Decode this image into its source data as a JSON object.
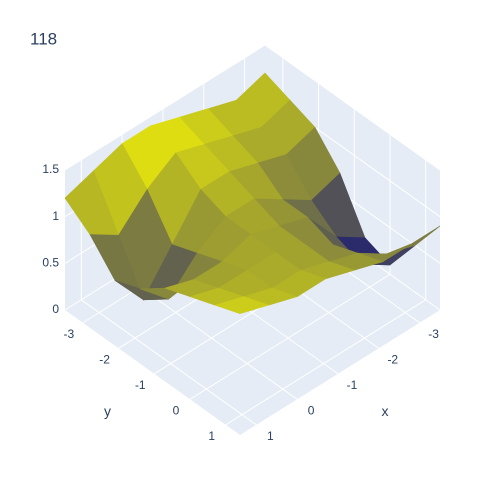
{
  "chart_data": {
    "type": "surface",
    "title": "118",
    "x": [
      -3.5,
      -2.8,
      -2.1,
      -1.4,
      -0.7,
      0,
      0.7,
      1.4
    ],
    "y": [
      -3.5,
      -2.8,
      -2.1,
      -1.4,
      -0.7,
      0,
      0.7,
      1.4
    ],
    "z": [
      [
        1.2,
        1.1,
        1.2,
        1.3,
        1.4,
        1.4,
        1.3,
        1.2
      ],
      [
        1.1,
        1.0,
        1.1,
        1.2,
        1.3,
        1.1,
        0.8,
        1.0
      ],
      [
        1.0,
        0.9,
        1.0,
        1.1,
        1.1,
        0.7,
        0.3,
        0.7
      ],
      [
        0.7,
        0.6,
        0.8,
        1.0,
        1.0,
        0.8,
        0.5,
        0.8
      ],
      [
        0.2,
        0.4,
        0.8,
        0.9,
        1.0,
        0.9,
        0.9,
        1.0
      ],
      [
        0.1,
        0.3,
        0.7,
        0.9,
        1.0,
        1.0,
        1.0,
        1.1
      ],
      [
        0.5,
        0.6,
        0.8,
        0.9,
        1.0,
        1.0,
        1.1,
        1.2
      ],
      [
        0.9,
        0.9,
        0.9,
        1.0,
        1.1,
        1.1,
        1.2,
        1.3
      ]
    ],
    "colorscale": [
      "#000080",
      "#ffff00"
    ],
    "xaxis_title": "x",
    "yaxis_title": "y",
    "xlim": [
      -3.5,
      1.4
    ],
    "ylim": [
      -3.5,
      1.4
    ],
    "zlim": [
      0,
      1.5
    ],
    "xticks": [
      -3,
      -2,
      -1,
      0,
      1
    ],
    "yticks": [
      -3,
      -2,
      -1,
      0,
      1
    ],
    "zticks": [
      0,
      0.5,
      1,
      1.5
    ],
    "grid": true
  }
}
